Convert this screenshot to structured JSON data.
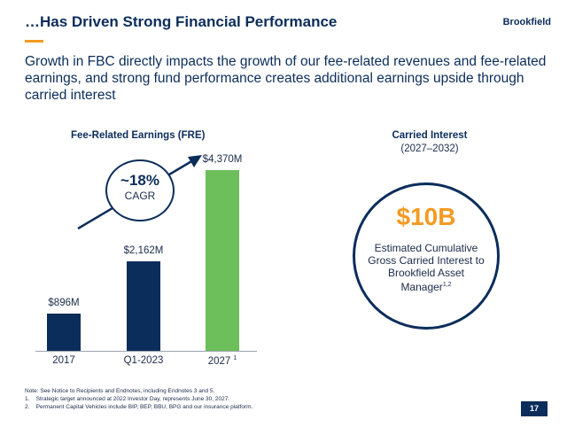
{
  "header": {
    "title": "…Has Driven Strong Financial Performance",
    "brand": "Brookfield"
  },
  "subtitle": "Growth in FBC directly impacts the growth of our fee-related revenues and fee-related earnings, and strong fund performance creates additional earnings upside through carried interest",
  "fre_chart": {
    "title": "Fee-Related Earnings (FRE)",
    "cagr_value": "~18%",
    "cagr_label": "CAGR"
  },
  "chart_data": {
    "type": "bar",
    "title": "Fee-Related Earnings (FRE)",
    "categories": [
      "2017",
      "Q1-2023",
      "2027"
    ],
    "category_superscripts": [
      "",
      "",
      "1"
    ],
    "values": [
      896,
      2162,
      4370
    ],
    "data_labels": [
      "$896M",
      "$2,162M",
      "$4,370M"
    ],
    "colors": [
      "#0b2d5b",
      "#0b2d5b",
      "#6cbf5b"
    ],
    "ylim": [
      0,
      4600
    ],
    "xlabel": "",
    "ylabel": "",
    "grid": false,
    "legend": "none"
  },
  "carried_interest": {
    "title": "Carried Interest",
    "period": "(2027–2032)",
    "value": "$10B",
    "description": "Estimated Cumulative Gross Carried Interest to Brookfield Asset Manager",
    "footnote_marks": "1,2"
  },
  "notes": {
    "line1": "Note: See Notice to Recipients and Endnotes, including Endnotes 3 and 5.",
    "line2": "1.    Strategic target announced at 2022 Investor Day, represents June 30, 2027.",
    "line3": "2.    Permanent Capital Vehicles include BIP, BEP, BBU, BPG and our insurance platform."
  },
  "page_number": "17",
  "colors": {
    "navy": "#0b2d5b",
    "green": "#6cbf5b",
    "orange": "#f39a21"
  }
}
